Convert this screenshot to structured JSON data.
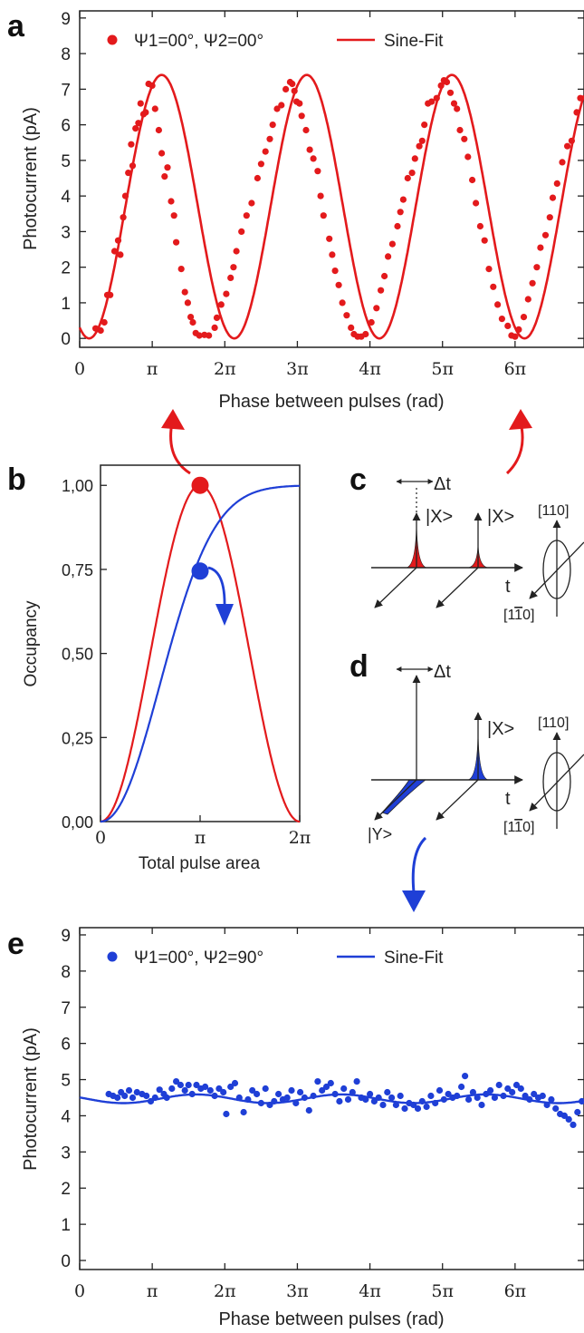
{
  "panel_letters": {
    "a": "a",
    "b": "b",
    "c": "c",
    "d": "d",
    "e": "e"
  },
  "colors": {
    "red": "#e31a1c",
    "blue": "#1f3fd6",
    "axis": "#222222"
  },
  "chart_data": [
    {
      "id": "a",
      "type": "scatter",
      "xlabel": "Phase between pulses (rad)",
      "ylabel": "Photocurrent (pA)",
      "xlim": [
        0,
        6.95
      ],
      "ylim": [
        -0.25,
        9.2
      ],
      "x_ticks": [
        0,
        1,
        2,
        3,
        4,
        5,
        6
      ],
      "x_tick_labels": [
        "0",
        "π",
        "2π",
        "3π",
        "4π",
        "5π",
        "6π"
      ],
      "y_ticks": [
        0,
        1,
        2,
        3,
        4,
        5,
        6,
        7,
        8,
        9
      ],
      "y_tick_labels": [
        "0",
        "1",
        "2",
        "3",
        "4",
        "5",
        "6",
        "7",
        "8",
        "9"
      ],
      "x_unit": "π rad",
      "legend": [
        {
          "label": "Ψ1=00°, Ψ2=00°",
          "marker": "dot",
          "color": "#e31a1c"
        },
        {
          "label": "Sine-Fit",
          "marker": "line",
          "color": "#e31a1c"
        }
      ],
      "fit": {
        "label": "Sine-Fit",
        "offset": 3.7,
        "amplitude": 3.7,
        "period": 2.0,
        "phase_shift": 0.13,
        "x_start": 0,
        "x_end": 6.95
      },
      "points": [
        [
          0.22,
          0.28
        ],
        [
          0.29,
          0.22
        ],
        [
          0.34,
          0.45
        ],
        [
          0.38,
          1.22
        ],
        [
          0.42,
          1.22
        ],
        [
          0.48,
          2.45
        ],
        [
          0.53,
          2.75
        ],
        [
          0.56,
          2.35
        ],
        [
          0.6,
          3.4
        ],
        [
          0.63,
          4.0
        ],
        [
          0.67,
          4.65
        ],
        [
          0.71,
          5.45
        ],
        [
          0.73,
          4.85
        ],
        [
          0.77,
          5.9
        ],
        [
          0.81,
          6.05
        ],
        [
          0.84,
          6.6
        ],
        [
          0.88,
          6.3
        ],
        [
          0.91,
          6.35
        ],
        [
          0.95,
          7.15
        ],
        [
          1.0,
          7.1
        ],
        [
          1.04,
          6.45
        ],
        [
          1.09,
          5.85
        ],
        [
          1.13,
          5.2
        ],
        [
          1.17,
          4.55
        ],
        [
          1.21,
          4.8
        ],
        [
          1.26,
          3.85
        ],
        [
          1.3,
          3.45
        ],
        [
          1.33,
          2.7
        ],
        [
          1.4,
          1.95
        ],
        [
          1.45,
          1.3
        ],
        [
          1.49,
          1.0
        ],
        [
          1.53,
          0.6
        ],
        [
          1.56,
          0.45
        ],
        [
          1.6,
          0.15
        ],
        [
          1.65,
          0.08
        ],
        [
          1.72,
          0.1
        ],
        [
          1.78,
          0.08
        ],
        [
          1.86,
          0.3
        ],
        [
          1.89,
          0.58
        ],
        [
          1.95,
          0.95
        ],
        [
          2.02,
          1.25
        ],
        [
          2.08,
          1.7
        ],
        [
          2.12,
          2.0
        ],
        [
          2.16,
          2.45
        ],
        [
          2.23,
          3.0
        ],
        [
          2.3,
          3.45
        ],
        [
          2.37,
          3.8
        ],
        [
          2.45,
          4.5
        ],
        [
          2.5,
          4.9
        ],
        [
          2.56,
          5.25
        ],
        [
          2.62,
          5.6
        ],
        [
          2.66,
          6.0
        ],
        [
          2.72,
          6.45
        ],
        [
          2.78,
          6.55
        ],
        [
          2.84,
          7.0
        ],
        [
          2.9,
          7.2
        ],
        [
          2.93,
          7.15
        ],
        [
          2.96,
          6.95
        ],
        [
          2.99,
          6.65
        ],
        [
          3.03,
          6.6
        ],
        [
          3.06,
          6.25
        ],
        [
          3.12,
          5.85
        ],
        [
          3.17,
          5.3
        ],
        [
          3.22,
          5.05
        ],
        [
          3.28,
          4.7
        ],
        [
          3.32,
          4.0
        ],
        [
          3.36,
          3.45
        ],
        [
          3.44,
          2.8
        ],
        [
          3.48,
          2.35
        ],
        [
          3.52,
          1.9
        ],
        [
          3.57,
          1.5
        ],
        [
          3.62,
          1.0
        ],
        [
          3.68,
          0.65
        ],
        [
          3.74,
          0.3
        ],
        [
          3.78,
          0.12
        ],
        [
          3.83,
          0.05
        ],
        [
          3.88,
          0.05
        ],
        [
          3.94,
          0.12
        ],
        [
          4.02,
          0.45
        ],
        [
          4.09,
          0.85
        ],
        [
          4.15,
          1.35
        ],
        [
          4.2,
          1.75
        ],
        [
          4.25,
          2.3
        ],
        [
          4.31,
          2.65
        ],
        [
          4.38,
          3.15
        ],
        [
          4.42,
          3.55
        ],
        [
          4.46,
          3.9
        ],
        [
          4.52,
          4.5
        ],
        [
          4.58,
          4.65
        ],
        [
          4.62,
          5.05
        ],
        [
          4.68,
          5.4
        ],
        [
          4.72,
          5.55
        ],
        [
          4.75,
          6.0
        ],
        [
          4.8,
          6.6
        ],
        [
          4.85,
          6.65
        ],
        [
          4.92,
          6.75
        ],
        [
          4.98,
          7.1
        ],
        [
          5.02,
          7.25
        ],
        [
          5.06,
          7.2
        ],
        [
          5.11,
          6.9
        ],
        [
          5.16,
          6.6
        ],
        [
          5.2,
          6.45
        ],
        [
          5.24,
          5.85
        ],
        [
          5.3,
          5.6
        ],
        [
          5.35,
          5.1
        ],
        [
          5.41,
          4.45
        ],
        [
          5.46,
          3.8
        ],
        [
          5.52,
          3.15
        ],
        [
          5.58,
          2.75
        ],
        [
          5.64,
          1.95
        ],
        [
          5.7,
          1.45
        ],
        [
          5.76,
          0.95
        ],
        [
          5.82,
          0.55
        ],
        [
          5.9,
          0.35
        ],
        [
          5.95,
          0.08
        ],
        [
          6.0,
          0.05
        ],
        [
          6.05,
          0.25
        ],
        [
          6.12,
          0.6
        ],
        [
          6.18,
          1.1
        ],
        [
          6.24,
          1.55
        ],
        [
          6.3,
          2.0
        ],
        [
          6.35,
          2.55
        ],
        [
          6.42,
          2.9
        ],
        [
          6.48,
          3.4
        ],
        [
          6.52,
          3.95
        ],
        [
          6.58,
          4.35
        ],
        [
          6.65,
          4.95
        ],
        [
          6.72,
          5.4
        ],
        [
          6.78,
          5.55
        ],
        [
          6.85,
          6.35
        ],
        [
          6.9,
          6.75
        ]
      ]
    },
    {
      "id": "b",
      "type": "line",
      "xlabel": "Total pulse area",
      "ylabel": "Occupancy",
      "xlim": [
        0,
        2
      ],
      "ylim": [
        0,
        1.06
      ],
      "x_ticks": [
        0,
        1,
        2
      ],
      "x_tick_labels": [
        "0",
        "π",
        "2π"
      ],
      "x_unit": "π",
      "y_ticks": [
        0,
        0.25,
        0.5,
        0.75,
        1.0
      ],
      "y_tick_labels": [
        "0,00",
        "0,25",
        "0,50",
        "0,75",
        "1,00"
      ],
      "series": [
        {
          "color": "#e31a1c",
          "function": "sin^2(pi*x/2)"
        },
        {
          "color": "#1f3fd6",
          "function": "saturating"
        }
      ],
      "markers": [
        {
          "x": 1.0,
          "y": 1.0,
          "color": "#e31a1c"
        },
        {
          "x": 1.0,
          "y": 0.745,
          "color": "#1f3fd6"
        }
      ]
    },
    {
      "id": "e",
      "type": "scatter",
      "xlabel": "Phase between pulses (rad)",
      "ylabel": "Photocurrent (pA)",
      "xlim": [
        0,
        6.95
      ],
      "ylim": [
        -0.25,
        9.2
      ],
      "x_ticks": [
        0,
        1,
        2,
        3,
        4,
        5,
        6
      ],
      "x_tick_labels": [
        "0",
        "π",
        "2π",
        "3π",
        "4π",
        "5π",
        "6π"
      ],
      "y_ticks": [
        0,
        1,
        2,
        3,
        4,
        5,
        6,
        7,
        8,
        9
      ],
      "y_tick_labels": [
        "0",
        "1",
        "2",
        "3",
        "4",
        "5",
        "6",
        "7",
        "8",
        "9"
      ],
      "x_unit": "π rad",
      "legend": [
        {
          "label": "Ψ1=00°, Ψ2=90°",
          "marker": "dot",
          "color": "#1f3fd6"
        },
        {
          "label": "Sine-Fit",
          "marker": "line",
          "color": "#1f3fd6"
        }
      ],
      "fit": {
        "label": "Sine-Fit",
        "offset": 4.47,
        "amplitude": 0.12,
        "period": 2.0,
        "phase_shift": 0.6,
        "x_start": 0,
        "x_end": 6.95
      },
      "points": [
        [
          0.4,
          4.6
        ],
        [
          0.46,
          4.55
        ],
        [
          0.52,
          4.5
        ],
        [
          0.57,
          4.65
        ],
        [
          0.62,
          4.55
        ],
        [
          0.68,
          4.7
        ],
        [
          0.73,
          4.5
        ],
        [
          0.79,
          4.65
        ],
        [
          0.86,
          4.6
        ],
        [
          0.92,
          4.55
        ],
        [
          0.98,
          4.4
        ],
        [
          1.04,
          4.5
        ],
        [
          1.1,
          4.72
        ],
        [
          1.16,
          4.6
        ],
        [
          1.2,
          4.5
        ],
        [
          1.27,
          4.75
        ],
        [
          1.33,
          4.95
        ],
        [
          1.39,
          4.85
        ],
        [
          1.45,
          4.7
        ],
        [
          1.5,
          4.85
        ],
        [
          1.55,
          4.6
        ],
        [
          1.61,
          4.85
        ],
        [
          1.67,
          4.75
        ],
        [
          1.73,
          4.8
        ],
        [
          1.8,
          4.7
        ],
        [
          1.86,
          4.55
        ],
        [
          1.92,
          4.75
        ],
        [
          1.98,
          4.65
        ],
        [
          2.02,
          4.05
        ],
        [
          2.08,
          4.8
        ],
        [
          2.14,
          4.9
        ],
        [
          2.2,
          4.5
        ],
        [
          2.26,
          4.1
        ],
        [
          2.32,
          4.45
        ],
        [
          2.38,
          4.7
        ],
        [
          2.44,
          4.6
        ],
        [
          2.5,
          4.35
        ],
        [
          2.56,
          4.75
        ],
        [
          2.62,
          4.3
        ],
        [
          2.68,
          4.4
        ],
        [
          2.74,
          4.6
        ],
        [
          2.8,
          4.45
        ],
        [
          2.86,
          4.5
        ],
        [
          2.92,
          4.7
        ],
        [
          2.98,
          4.35
        ],
        [
          3.04,
          4.65
        ],
        [
          3.1,
          4.5
        ],
        [
          3.16,
          4.15
        ],
        [
          3.22,
          4.55
        ],
        [
          3.28,
          4.95
        ],
        [
          3.34,
          4.7
        ],
        [
          3.4,
          4.8
        ],
        [
          3.46,
          4.9
        ],
        [
          3.52,
          4.6
        ],
        [
          3.58,
          4.4
        ],
        [
          3.64,
          4.75
        ],
        [
          3.7,
          4.45
        ],
        [
          3.76,
          4.65
        ],
        [
          3.82,
          4.95
        ],
        [
          3.88,
          4.5
        ],
        [
          3.94,
          4.45
        ],
        [
          4.0,
          4.6
        ],
        [
          4.06,
          4.4
        ],
        [
          4.12,
          4.5
        ],
        [
          4.18,
          4.3
        ],
        [
          4.24,
          4.65
        ],
        [
          4.3,
          4.5
        ],
        [
          4.36,
          4.3
        ],
        [
          4.42,
          4.55
        ],
        [
          4.48,
          4.2
        ],
        [
          4.54,
          4.35
        ],
        [
          4.6,
          4.3
        ],
        [
          4.66,
          4.2
        ],
        [
          4.72,
          4.4
        ],
        [
          4.78,
          4.25
        ],
        [
          4.84,
          4.55
        ],
        [
          4.9,
          4.35
        ],
        [
          4.96,
          4.7
        ],
        [
          5.02,
          4.45
        ],
        [
          5.08,
          4.6
        ],
        [
          5.14,
          4.5
        ],
        [
          5.2,
          4.55
        ],
        [
          5.26,
          4.8
        ],
        [
          5.31,
          5.1
        ],
        [
          5.36,
          4.45
        ],
        [
          5.42,
          4.65
        ],
        [
          5.48,
          4.5
        ],
        [
          5.54,
          4.3
        ],
        [
          5.6,
          4.6
        ],
        [
          5.66,
          4.7
        ],
        [
          5.72,
          4.5
        ],
        [
          5.78,
          4.85
        ],
        [
          5.84,
          4.55
        ],
        [
          5.9,
          4.75
        ],
        [
          5.96,
          4.65
        ],
        [
          6.02,
          4.85
        ],
        [
          6.08,
          4.75
        ],
        [
          6.14,
          4.55
        ],
        [
          6.2,
          4.45
        ],
        [
          6.26,
          4.6
        ],
        [
          6.32,
          4.5
        ],
        [
          6.38,
          4.55
        ],
        [
          6.44,
          4.3
        ],
        [
          6.5,
          4.45
        ],
        [
          6.56,
          4.2
        ],
        [
          6.62,
          4.05
        ],
        [
          6.68,
          4.0
        ],
        [
          6.74,
          3.9
        ],
        [
          6.8,
          3.75
        ],
        [
          6.86,
          4.1
        ],
        [
          6.92,
          4.4
        ]
      ]
    }
  ],
  "diagram_c": {
    "delta_t": "Δt",
    "pulse1_label": "|X>",
    "pulse2_label": "|X>",
    "time_label": "t",
    "crystal_axis_110": "[110]",
    "crystal_axis_1m10_prefix": "[1",
    "crystal_axis_1m10_bar": "1",
    "crystal_axis_1m10_suffix": "0]"
  },
  "diagram_d": {
    "delta_t": "Δt",
    "pulse2_label": "|X>",
    "pulse1_label": "|Y>",
    "time_label": "t",
    "crystal_axis_110": "[110]",
    "crystal_axis_1m10_prefix": "[1",
    "crystal_axis_1m10_bar": "1",
    "crystal_axis_1m10_suffix": "0]"
  }
}
